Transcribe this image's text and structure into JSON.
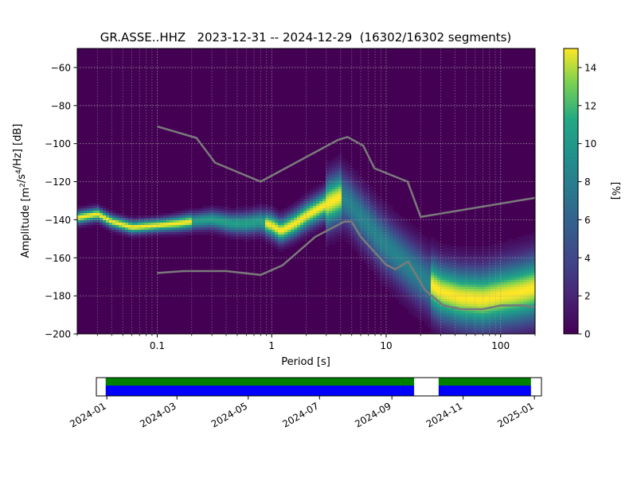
{
  "chart_data": {
    "type": "heatmap",
    "title": "GR.ASSE..HHZ   2023-12-31 -- 2024-12-29  (16302/16302 segments)",
    "xlabel": "Period [s]",
    "ylabel": "Amplitude [m²/s⁴/Hz] [dB]",
    "x_scale": "log",
    "xlim": [
      0.02,
      200
    ],
    "ylim": [
      -200,
      -50
    ],
    "grid": true,
    "x_ticks": [
      {
        "value": 0.1,
        "label": "0.1"
      },
      {
        "value": 1,
        "label": "1"
      },
      {
        "value": 10,
        "label": "10"
      },
      {
        "value": 100,
        "label": "100"
      }
    ],
    "y_ticks": [
      -60,
      -80,
      -100,
      -120,
      -140,
      -160,
      -180,
      -200
    ],
    "y_tick_labels": [
      "−60",
      "−80",
      "−100",
      "−120",
      "−140",
      "−160",
      "−180",
      "−200"
    ],
    "colorbar": {
      "label": "[%]",
      "range": [
        0,
        15
      ],
      "ticks": [
        0,
        2,
        4,
        6,
        8,
        10,
        12,
        14
      ],
      "tick_labels": [
        "0",
        "2",
        "4",
        "6",
        "8",
        "10",
        "12",
        "14"
      ],
      "colormap": "viridis"
    },
    "colors": {
      "background": "#440154",
      "noise_model_line": "#7a7a7a",
      "grid": "#a0a0a0"
    },
    "mode_curve": [
      [
        0.02,
        -139
      ],
      [
        0.03,
        -137
      ],
      [
        0.04,
        -141
      ],
      [
        0.06,
        -144
      ],
      [
        0.1,
        -143
      ],
      [
        0.15,
        -142
      ],
      [
        0.2,
        -141
      ],
      [
        0.3,
        -140
      ],
      [
        0.45,
        -142
      ],
      [
        0.6,
        -142
      ],
      [
        0.8,
        -141
      ],
      [
        1.0,
        -143
      ],
      [
        1.2,
        -146
      ],
      [
        1.6,
        -142
      ],
      [
        2.0,
        -138
      ],
      [
        2.6,
        -134
      ],
      [
        3.2,
        -131
      ],
      [
        4.0,
        -128
      ],
      [
        4.7,
        -131
      ],
      [
        5.5,
        -136
      ],
      [
        7,
        -143
      ],
      [
        9,
        -151
      ],
      [
        12,
        -158
      ],
      [
        16,
        -165
      ],
      [
        22,
        -172
      ],
      [
        30,
        -178
      ],
      [
        45,
        -181
      ],
      [
        70,
        -182
      ],
      [
        100,
        -180
      ],
      [
        150,
        -178
      ],
      [
        200,
        -176
      ]
    ],
    "nhnm": [
      [
        0.1,
        -91
      ],
      [
        0.22,
        -97
      ],
      [
        0.32,
        -110
      ],
      [
        0.8,
        -120
      ],
      [
        3.8,
        -98
      ],
      [
        4.6,
        -96.5
      ],
      [
        6.3,
        -101
      ],
      [
        7.9,
        -113
      ],
      [
        15.4,
        -120
      ],
      [
        20,
        -138.5
      ],
      [
        200,
        -128.5
      ]
    ],
    "nlnm": [
      [
        0.1,
        -168
      ],
      [
        0.17,
        -167
      ],
      [
        0.4,
        -167
      ],
      [
        0.8,
        -169
      ],
      [
        1.24,
        -164
      ],
      [
        2.4,
        -149
      ],
      [
        4.3,
        -141
      ],
      [
        5.0,
        -141
      ],
      [
        6.0,
        -149
      ],
      [
        10,
        -163.7
      ],
      [
        12,
        -166
      ],
      [
        15.6,
        -162
      ],
      [
        21.9,
        -177
      ],
      [
        31.6,
        -185
      ],
      [
        45,
        -187
      ],
      [
        70,
        -187
      ],
      [
        101,
        -185
      ],
      [
        154,
        -185
      ],
      [
        200,
        -186
      ]
    ]
  },
  "coverage": {
    "tick_labels": [
      "2024-01",
      "2024-03",
      "2024-05",
      "2024-07",
      "2024-09",
      "2024-11",
      "2025-01"
    ],
    "tick_dates": [
      "2024-01-01",
      "2024-03-01",
      "2024-05-01",
      "2024-07-01",
      "2024-09-01",
      "2024-11-01",
      "2025-01-01"
    ],
    "range": [
      "2023-12-23",
      "2025-01-07"
    ],
    "data_blocks": [
      [
        "2023-12-31",
        "2024-09-20"
      ],
      [
        "2024-10-11",
        "2024-12-29"
      ]
    ],
    "colors": {
      "top_band": "#008000",
      "bottom_band": "#0000ff"
    }
  }
}
